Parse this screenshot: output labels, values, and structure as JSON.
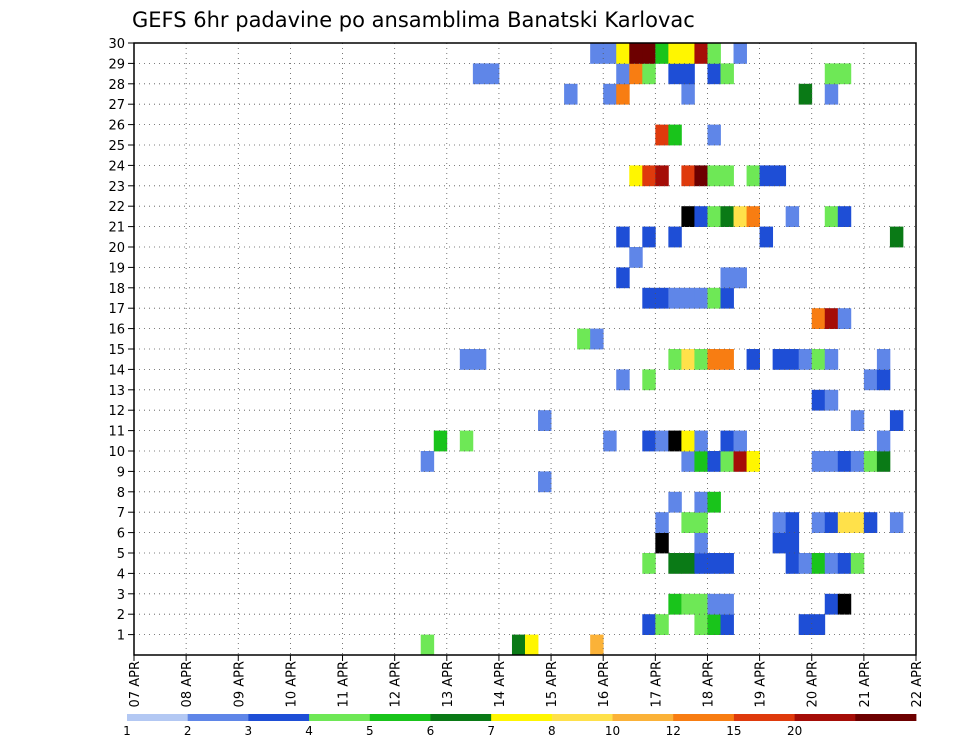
{
  "chart_data": {
    "type": "heatmap",
    "title": "GEFS 6hr padavine po ansamblima Banatski Karlovac",
    "xlabel": "",
    "ylabel": "",
    "x_ticks": [
      "07 APR",
      "08 APR",
      "09 APR",
      "10 APR",
      "11 APR",
      "12 APR",
      "13 APR",
      "14 APR",
      "15 APR",
      "16 APR",
      "17 APR",
      "18 APR",
      "19 APR",
      "20 APR",
      "21 APR",
      "22 APR"
    ],
    "y_ticks": [
      "1",
      "2",
      "3",
      "4",
      "5",
      "6",
      "7",
      "8",
      "9",
      "10",
      "11",
      "12",
      "13",
      "14",
      "15",
      "16",
      "17",
      "18",
      "19",
      "20",
      "21",
      "22",
      "23",
      "24",
      "25",
      "26",
      "27",
      "28",
      "29",
      "30"
    ],
    "y_range": [
      0,
      30
    ],
    "grid": true,
    "colorbar": {
      "labels": [
        "1",
        "2",
        "3",
        "4",
        "5",
        "6",
        "7",
        "8",
        "10",
        "12",
        "15",
        "20"
      ],
      "colors": [
        "#b3c8f3",
        "#5f86e8",
        "#1e4ed6",
        "#6ee856",
        "#19c41b",
        "#0a7a16",
        "#fff600",
        "#ffe14a",
        "#fbb238",
        "#f87d12",
        "#df3a0c",
        "#a50d07",
        "#6d0000"
      ]
    },
    "time_axis": {
      "start": "07 APR",
      "step_hours": 6
    },
    "cells": [
      [
        0,
        22,
        3
      ],
      [
        0,
        29,
        5
      ],
      [
        0,
        30,
        6
      ],
      [
        0,
        35,
        8
      ],
      [
        1,
        39,
        2
      ],
      [
        1,
        40,
        3
      ],
      [
        1,
        43,
        3
      ],
      [
        1,
        44,
        4
      ],
      [
        1,
        45,
        2
      ],
      [
        1,
        51,
        2
      ],
      [
        1,
        52,
        2
      ],
      [
        2,
        41,
        4
      ],
      [
        2,
        42,
        3
      ],
      [
        2,
        43,
        3
      ],
      [
        2,
        44,
        1
      ],
      [
        2,
        45,
        1
      ],
      [
        2,
        53,
        2
      ],
      [
        2,
        54,
        13
      ],
      [
        4,
        39,
        3
      ],
      [
        4,
        41,
        5
      ],
      [
        4,
        42,
        5
      ],
      [
        4,
        43,
        2
      ],
      [
        4,
        44,
        2
      ],
      [
        4,
        45,
        2
      ],
      [
        4,
        50,
        2
      ],
      [
        4,
        51,
        1
      ],
      [
        4,
        52,
        4
      ],
      [
        4,
        53,
        1
      ],
      [
        4,
        54,
        2
      ],
      [
        4,
        55,
        3
      ],
      [
        5,
        40,
        13
      ],
      [
        5,
        43,
        1
      ],
      [
        5,
        49,
        2
      ],
      [
        5,
        50,
        2
      ],
      [
        6,
        40,
        1
      ],
      [
        6,
        42,
        3
      ],
      [
        6,
        43,
        3
      ],
      [
        6,
        49,
        1
      ],
      [
        6,
        50,
        2
      ],
      [
        6,
        52,
        1
      ],
      [
        6,
        53,
        2
      ],
      [
        6,
        54,
        7
      ],
      [
        6,
        55,
        7
      ],
      [
        6,
        56,
        2
      ],
      [
        6,
        58,
        1
      ],
      [
        7,
        41,
        1
      ],
      [
        7,
        43,
        1
      ],
      [
        7,
        44,
        4
      ],
      [
        8,
        31,
        1
      ],
      [
        9,
        22,
        1
      ],
      [
        9,
        42,
        1
      ],
      [
        9,
        43,
        4
      ],
      [
        9,
        44,
        2
      ],
      [
        9,
        45,
        3
      ],
      [
        9,
        46,
        11
      ],
      [
        9,
        47,
        6
      ],
      [
        9,
        52,
        1
      ],
      [
        9,
        53,
        1
      ],
      [
        9,
        54,
        2
      ],
      [
        9,
        55,
        1
      ],
      [
        9,
        56,
        3
      ],
      [
        9,
        57,
        5
      ],
      [
        10,
        23,
        4
      ],
      [
        10,
        25,
        3
      ],
      [
        10,
        36,
        1
      ],
      [
        10,
        39,
        2
      ],
      [
        10,
        40,
        1
      ],
      [
        10,
        41,
        13
      ],
      [
        10,
        42,
        6
      ],
      [
        10,
        43,
        1
      ],
      [
        10,
        45,
        2
      ],
      [
        10,
        46,
        1
      ],
      [
        10,
        57,
        1
      ],
      [
        11,
        31,
        1
      ],
      [
        11,
        55,
        1
      ],
      [
        11,
        58,
        2
      ],
      [
        12,
        52,
        2
      ],
      [
        12,
        53,
        1
      ],
      [
        13,
        37,
        1
      ],
      [
        13,
        39,
        3
      ],
      [
        13,
        56,
        1
      ],
      [
        13,
        57,
        2
      ],
      [
        14,
        25,
        1
      ],
      [
        14,
        26,
        1
      ],
      [
        14,
        41,
        3
      ],
      [
        14,
        42,
        7
      ],
      [
        14,
        43,
        3
      ],
      [
        14,
        44,
        9
      ],
      [
        14,
        45,
        9
      ],
      [
        14,
        47,
        2
      ],
      [
        14,
        49,
        2
      ],
      [
        14,
        50,
        2
      ],
      [
        14,
        51,
        1
      ],
      [
        14,
        52,
        3
      ],
      [
        14,
        53,
        1
      ],
      [
        14,
        57,
        1
      ],
      [
        15,
        34,
        3
      ],
      [
        15,
        35,
        1
      ],
      [
        16,
        52,
        9
      ],
      [
        16,
        53,
        11
      ],
      [
        16,
        54,
        1
      ],
      [
        17,
        39,
        2
      ],
      [
        17,
        40,
        2
      ],
      [
        17,
        41,
        1
      ],
      [
        17,
        42,
        1
      ],
      [
        17,
        43,
        1
      ],
      [
        17,
        44,
        3
      ],
      [
        17,
        45,
        2
      ],
      [
        18,
        37,
        2
      ],
      [
        18,
        45,
        1
      ],
      [
        18,
        46,
        1
      ],
      [
        19,
        38,
        1
      ],
      [
        20,
        37,
        2
      ],
      [
        20,
        39,
        2
      ],
      [
        20,
        41,
        2
      ],
      [
        20,
        48,
        2
      ],
      [
        20,
        58,
        5
      ],
      [
        21,
        42,
        13
      ],
      [
        21,
        43,
        2
      ],
      [
        21,
        44,
        3
      ],
      [
        21,
        45,
        5
      ],
      [
        21,
        46,
        7
      ],
      [
        21,
        47,
        9
      ],
      [
        21,
        50,
        1
      ],
      [
        21,
        53,
        3
      ],
      [
        21,
        54,
        2
      ],
      [
        23,
        38,
        6
      ],
      [
        23,
        39,
        10
      ],
      [
        23,
        40,
        11
      ],
      [
        23,
        42,
        10
      ],
      [
        23,
        43,
        12
      ],
      [
        23,
        44,
        3
      ],
      [
        23,
        45,
        3
      ],
      [
        23,
        47,
        3
      ],
      [
        23,
        48,
        2
      ],
      [
        23,
        49,
        2
      ],
      [
        25,
        40,
        10
      ],
      [
        25,
        41,
        4
      ],
      [
        25,
        44,
        1
      ],
      [
        27,
        33,
        1
      ],
      [
        27,
        36,
        1
      ],
      [
        27,
        37,
        9
      ],
      [
        27,
        42,
        1
      ],
      [
        27,
        51,
        5
      ],
      [
        27,
        53,
        1
      ],
      [
        28,
        26,
        1
      ],
      [
        28,
        27,
        1
      ],
      [
        28,
        37,
        1
      ],
      [
        28,
        38,
        9
      ],
      [
        28,
        39,
        3
      ],
      [
        28,
        41,
        2
      ],
      [
        28,
        42,
        2
      ],
      [
        28,
        44,
        2
      ],
      [
        28,
        45,
        3
      ],
      [
        28,
        53,
        3
      ],
      [
        28,
        54,
        3
      ],
      [
        29,
        35,
        1
      ],
      [
        29,
        36,
        1
      ],
      [
        29,
        37,
        6
      ],
      [
        29,
        38,
        12
      ],
      [
        29,
        39,
        12
      ],
      [
        29,
        40,
        4
      ],
      [
        29,
        41,
        6
      ],
      [
        29,
        42,
        6
      ],
      [
        29,
        43,
        11
      ],
      [
        29,
        44,
        3
      ],
      [
        29,
        46,
        1
      ]
    ]
  }
}
